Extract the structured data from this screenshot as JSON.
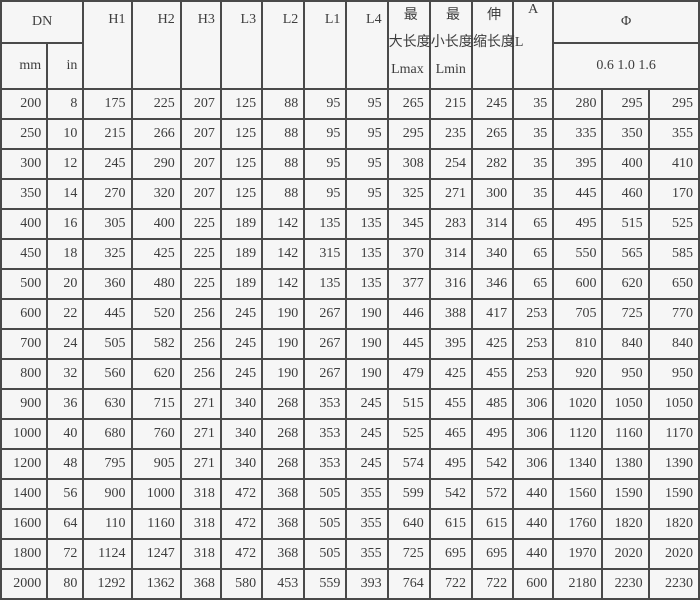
{
  "table": {
    "header": {
      "dn": "DN",
      "mm": "mm",
      "in": "in",
      "h1": "H1",
      "h2": "H2",
      "h3": "H3",
      "l3": "L3",
      "l2": "L2",
      "l1": "L1",
      "l4": "L4",
      "lmax_lines": [
        "最",
        "大长度",
        "Lmax"
      ],
      "lmin_lines": [
        "最",
        "小长度",
        "Lmin"
      ],
      "stretch_lines": [
        "伸",
        "缩长度L"
      ],
      "a": "A",
      "phi": "Φ",
      "phi_sub": "0.6 1.0 1.6"
    },
    "rows": [
      [
        "200",
        "8",
        "175",
        "225",
        "207",
        "125",
        "88",
        "95",
        "95",
        "265",
        "215",
        "245",
        "35",
        "280",
        "295",
        "295"
      ],
      [
        "250",
        "10",
        "215",
        "266",
        "207",
        "125",
        "88",
        "95",
        "95",
        "295",
        "235",
        "265",
        "35",
        "335",
        "350",
        "355"
      ],
      [
        "300",
        "12",
        "245",
        "290",
        "207",
        "125",
        "88",
        "95",
        "95",
        "308",
        "254",
        "282",
        "35",
        "395",
        "400",
        "410"
      ],
      [
        "350",
        "14",
        "270",
        "320",
        "207",
        "125",
        "88",
        "95",
        "95",
        "325",
        "271",
        "300",
        "35",
        "445",
        "460",
        "170"
      ],
      [
        "400",
        "16",
        "305",
        "400",
        "225",
        "189",
        "142",
        "135",
        "135",
        "345",
        "283",
        "314",
        "65",
        "495",
        "515",
        "525"
      ],
      [
        "450",
        "18",
        "325",
        "425",
        "225",
        "189",
        "142",
        "315",
        "135",
        "370",
        "314",
        "340",
        "65",
        "550",
        "565",
        "585"
      ],
      [
        "500",
        "20",
        "360",
        "480",
        "225",
        "189",
        "142",
        "135",
        "135",
        "377",
        "316",
        "346",
        "65",
        "600",
        "620",
        "650"
      ],
      [
        "600",
        "22",
        "445",
        "520",
        "256",
        "245",
        "190",
        "267",
        "190",
        "446",
        "388",
        "417",
        "253",
        "705",
        "725",
        "770"
      ],
      [
        "700",
        "24",
        "505",
        "582",
        "256",
        "245",
        "190",
        "267",
        "190",
        "445",
        "395",
        "425",
        "253",
        "810",
        "840",
        "840"
      ],
      [
        "800",
        "32",
        "560",
        "620",
        "256",
        "245",
        "190",
        "267",
        "190",
        "479",
        "425",
        "455",
        "253",
        "920",
        "950",
        "950"
      ],
      [
        "900",
        "36",
        "630",
        "715",
        "271",
        "340",
        "268",
        "353",
        "245",
        "515",
        "455",
        "485",
        "306",
        "1020",
        "1050",
        "1050"
      ],
      [
        "1000",
        "40",
        "680",
        "760",
        "271",
        "340",
        "268",
        "353",
        "245",
        "525",
        "465",
        "495",
        "306",
        "1120",
        "1160",
        "1170"
      ],
      [
        "1200",
        "48",
        "795",
        "905",
        "271",
        "340",
        "268",
        "353",
        "245",
        "574",
        "495",
        "542",
        "306",
        "1340",
        "1380",
        "1390"
      ],
      [
        "1400",
        "56",
        "900",
        "1000",
        "318",
        "472",
        "368",
        "505",
        "355",
        "599",
        "542",
        "572",
        "440",
        "1560",
        "1590",
        "1590"
      ],
      [
        "1600",
        "64",
        "110",
        "1160",
        "318",
        "472",
        "368",
        "505",
        "355",
        "640",
        "615",
        "615",
        "440",
        "1760",
        "1820",
        "1820"
      ],
      [
        "1800",
        "72",
        "1124",
        "1247",
        "318",
        "472",
        "368",
        "505",
        "355",
        "725",
        "695",
        "695",
        "440",
        "1970",
        "2020",
        "2020"
      ],
      [
        "2000",
        "80",
        "1292",
        "1362",
        "368",
        "580",
        "453",
        "559",
        "393",
        "764",
        "722",
        "722",
        "600",
        "2180",
        "2230",
        "2230"
      ]
    ],
    "colors": {
      "border": "#4a4a4a",
      "cell_background": "#f6f6f6",
      "text": "#3d3d3d"
    }
  }
}
